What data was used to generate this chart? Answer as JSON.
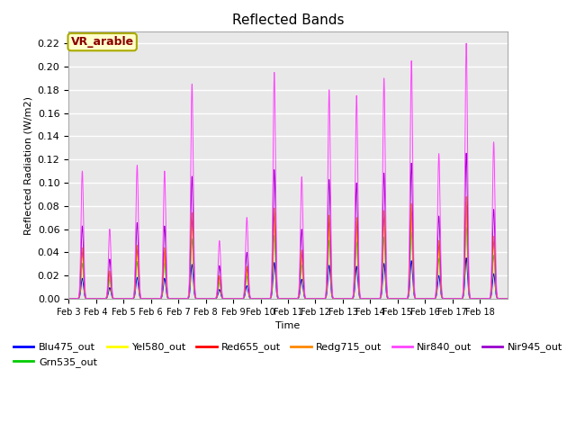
{
  "title": "Reflected Bands",
  "xlabel": "Time",
  "ylabel": "Reflected Radiation (W/m2)",
  "ylim": [
    0,
    0.23
  ],
  "yticks": [
    0.0,
    0.02,
    0.04,
    0.06,
    0.08,
    0.1,
    0.12,
    0.14,
    0.16,
    0.18,
    0.2,
    0.22
  ],
  "n_days": 16,
  "points_per_day": 144,
  "annotation_label": "VR_arable",
  "annotation_bbox_facecolor": "#ffffcc",
  "annotation_bbox_edgecolor": "#aaaa00",
  "annotation_text_color": "#8b0000",
  "bg_color": "#e8e8e8",
  "lines": [
    {
      "label": "Blu475_out",
      "color": "#0000ff",
      "ratio": 0.16
    },
    {
      "label": "Grn535_out",
      "color": "#00cc00",
      "ratio": 0.28
    },
    {
      "label": "Yel580_out",
      "color": "#ffff00",
      "ratio": 0.33
    },
    {
      "label": "Red655_out",
      "color": "#ff0000",
      "ratio": 0.38
    },
    {
      "label": "Redg715_out",
      "color": "#ff8800",
      "ratio": 0.4
    },
    {
      "label": "Nir840_out",
      "color": "#ff44ff",
      "ratio": 1.0
    },
    {
      "label": "Nir945_out",
      "color": "#9900cc",
      "ratio": 0.57
    }
  ],
  "day_peaks_nir840": [
    0.11,
    0.06,
    0.115,
    0.11,
    0.185,
    0.05,
    0.07,
    0.195,
    0.105,
    0.18,
    0.175,
    0.19,
    0.205,
    0.125,
    0.22,
    0.135
  ],
  "xtick_labels": [
    "Feb 3",
    "Feb 4",
    "Feb 5",
    "Feb 6",
    "Feb 7",
    "Feb 8",
    "Feb 9",
    "Feb 10",
    "Feb 11",
    "Feb 12",
    "Feb 13",
    "Feb 14",
    "Feb 15",
    "Feb 16",
    "Feb 17",
    "Feb 18"
  ],
  "figsize": [
    6.4,
    4.8
  ],
  "dpi": 100
}
